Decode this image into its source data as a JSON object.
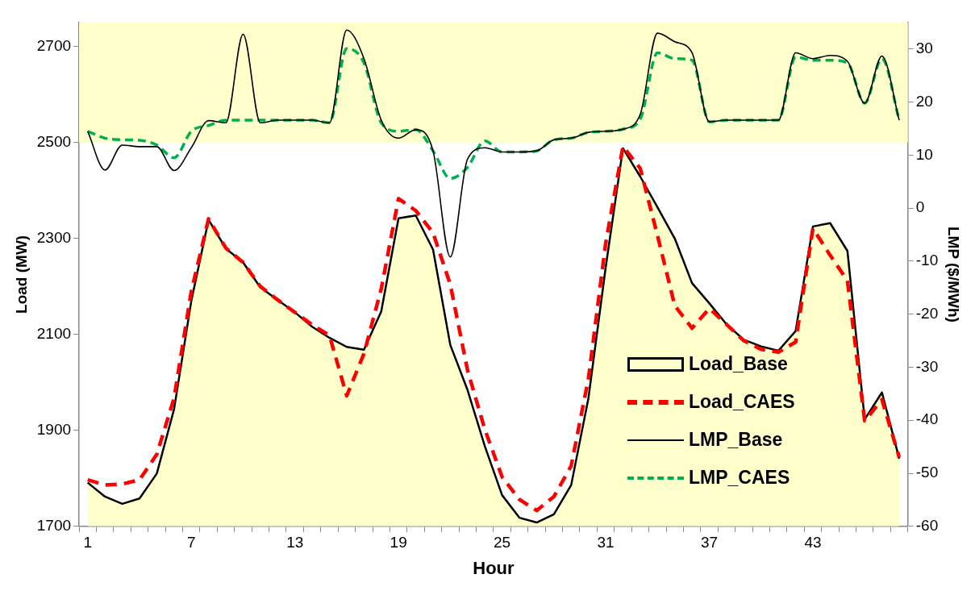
{
  "chart_data": {
    "type": "line",
    "xlabel": "Hour",
    "ylabel": "Load (MW)",
    "y2label": "LMP ($/MWh)",
    "categories": [
      "1",
      null,
      null,
      null,
      null,
      null,
      "7",
      null,
      null,
      null,
      null,
      null,
      "13",
      null,
      null,
      null,
      null,
      null,
      "19",
      null,
      null,
      null,
      null,
      null,
      "25",
      null,
      null,
      null,
      null,
      null,
      "31",
      null,
      null,
      null,
      null,
      null,
      "37",
      null,
      null,
      null,
      null,
      null,
      "43",
      null,
      null,
      null,
      null,
      null
    ],
    "ylim": [
      1700,
      2750
    ],
    "yticks": [
      1700,
      1900,
      2100,
      2300,
      2500,
      2700
    ],
    "y2lim": [
      -60,
      35
    ],
    "y2ticks": [
      -60,
      -50,
      -40,
      -30,
      -20,
      -10,
      0,
      10,
      20,
      30
    ],
    "marker": "none",
    "legend": "bottom right",
    "bands": [
      {
        "axis": "y",
        "from": 2500,
        "to": 2750,
        "color": "#ffffcc"
      }
    ],
    "series": [
      {
        "name": "Load_Base",
        "type": "area",
        "color": "#ffffcc",
        "line_style": "solid",
        "values": [
          1791,
          1762,
          1747,
          1758,
          1810,
          1944,
          2170,
          2339,
          2279,
          2250,
          2198,
          2172,
          2146,
          2116,
          2093,
          2074,
          2068,
          2148,
          2342,
          2348,
          2277,
          2078,
          1984,
          1867,
          1765,
          1718,
          1708,
          1725,
          1786,
          1967,
          2240,
          2488,
          2429,
          2365,
          2300,
          2207,
          2165,
          2121,
          2089,
          2075,
          2066,
          2107,
          2325,
          2332,
          2274,
          1923,
          1979,
          1841
        ]
      },
      {
        "name": "Load_CAES",
        "color": "#ff0000",
        "line_style": "dashed",
        "values": [
          1797,
          1786,
          1788,
          1797,
          1850,
          1967,
          2190,
          2341,
          2280,
          2250,
          2200,
          2172,
          2146,
          2120,
          2098,
          1972,
          2060,
          2195,
          2383,
          2358,
          2312,
          2204,
          2025,
          1902,
          1803,
          1756,
          1733,
          1762,
          1826,
          2008,
          2290,
          2492,
          2446,
          2306,
          2160,
          2113,
          2154,
          2121,
          2087,
          2069,
          2063,
          2084,
          2321,
          2265,
          2212,
          1920,
          1964,
          1844
        ]
      },
      {
        "name": "LMP_Base",
        "axis": "y2",
        "color": "#000000",
        "line_style": "solid",
        "values": [
          14.5,
          7.2,
          11.9,
          11.6,
          11.6,
          7.1,
          11.4,
          16.5,
          16.1,
          32.8,
          16.1,
          16.6,
          16.6,
          16.6,
          16.1,
          33.6,
          28.2,
          16.6,
          13.2,
          14.8,
          10.8,
          -9.2,
          9.3,
          11.4,
          10.6,
          10.6,
          10.8,
          12.9,
          13.2,
          14.3,
          14.5,
          14.9,
          17.7,
          33.0,
          31.4,
          29.3,
          16.3,
          16.6,
          16.6,
          16.6,
          16.6,
          29.3,
          28.2,
          28.8,
          27.7,
          19.8,
          28.7,
          16.6
        ]
      },
      {
        "name": "LMP_CAES",
        "axis": "y2",
        "color": "#00b050",
        "line_style": "dashed",
        "values": [
          14.5,
          13.2,
          12.9,
          12.8,
          11.9,
          9.5,
          14.5,
          15.6,
          16.6,
          16.6,
          16.6,
          16.6,
          16.6,
          16.6,
          16.1,
          30.1,
          27.4,
          16.1,
          14.5,
          14.8,
          10.8,
          5.6,
          7.7,
          12.7,
          10.6,
          10.6,
          10.8,
          12.9,
          13.2,
          14.3,
          14.5,
          14.9,
          16.8,
          29.3,
          28.2,
          27.9,
          16.3,
          16.6,
          16.6,
          16.6,
          16.6,
          28.5,
          27.9,
          27.9,
          27.4,
          19.8,
          28.2,
          16.6
        ]
      }
    ]
  }
}
